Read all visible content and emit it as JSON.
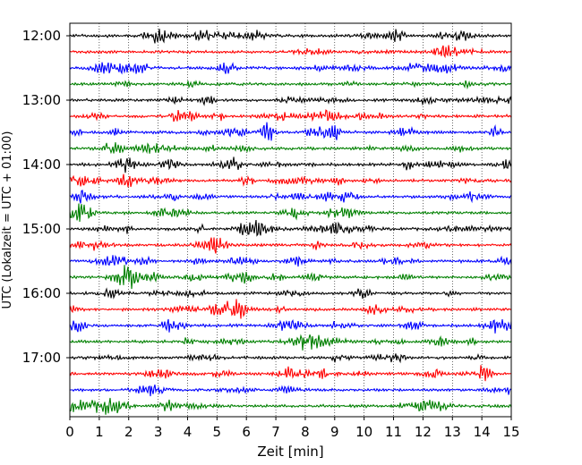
{
  "chart_data": {
    "type": "line",
    "xlabel": "Zeit  [min]",
    "ylabel": "UTC (Lokalzeit = UTC + 01:00)",
    "xlim": [
      0,
      15
    ],
    "x_ticks": [
      "0",
      "1",
      "2",
      "3",
      "4",
      "5",
      "6",
      "7",
      "8",
      "9",
      "10",
      "11",
      "12",
      "13",
      "14",
      "15"
    ],
    "y_ticks": [
      {
        "label": "12:00",
        "row": 0
      },
      {
        "label": "13:00",
        "row": 4
      },
      {
        "label": "14:00",
        "row": 8
      },
      {
        "label": "15:00",
        "row": 12
      },
      {
        "label": "16:00",
        "row": 16
      },
      {
        "label": "17:00",
        "row": 20
      }
    ],
    "trace_count": 24,
    "trace_interval_minutes": 15,
    "trace_colors": [
      "#000000",
      "#ff0000",
      "#0000ff",
      "#008000"
    ],
    "vertical_grid": "dotted",
    "series_description": "seismogram traces, one per 15-minute row"
  }
}
